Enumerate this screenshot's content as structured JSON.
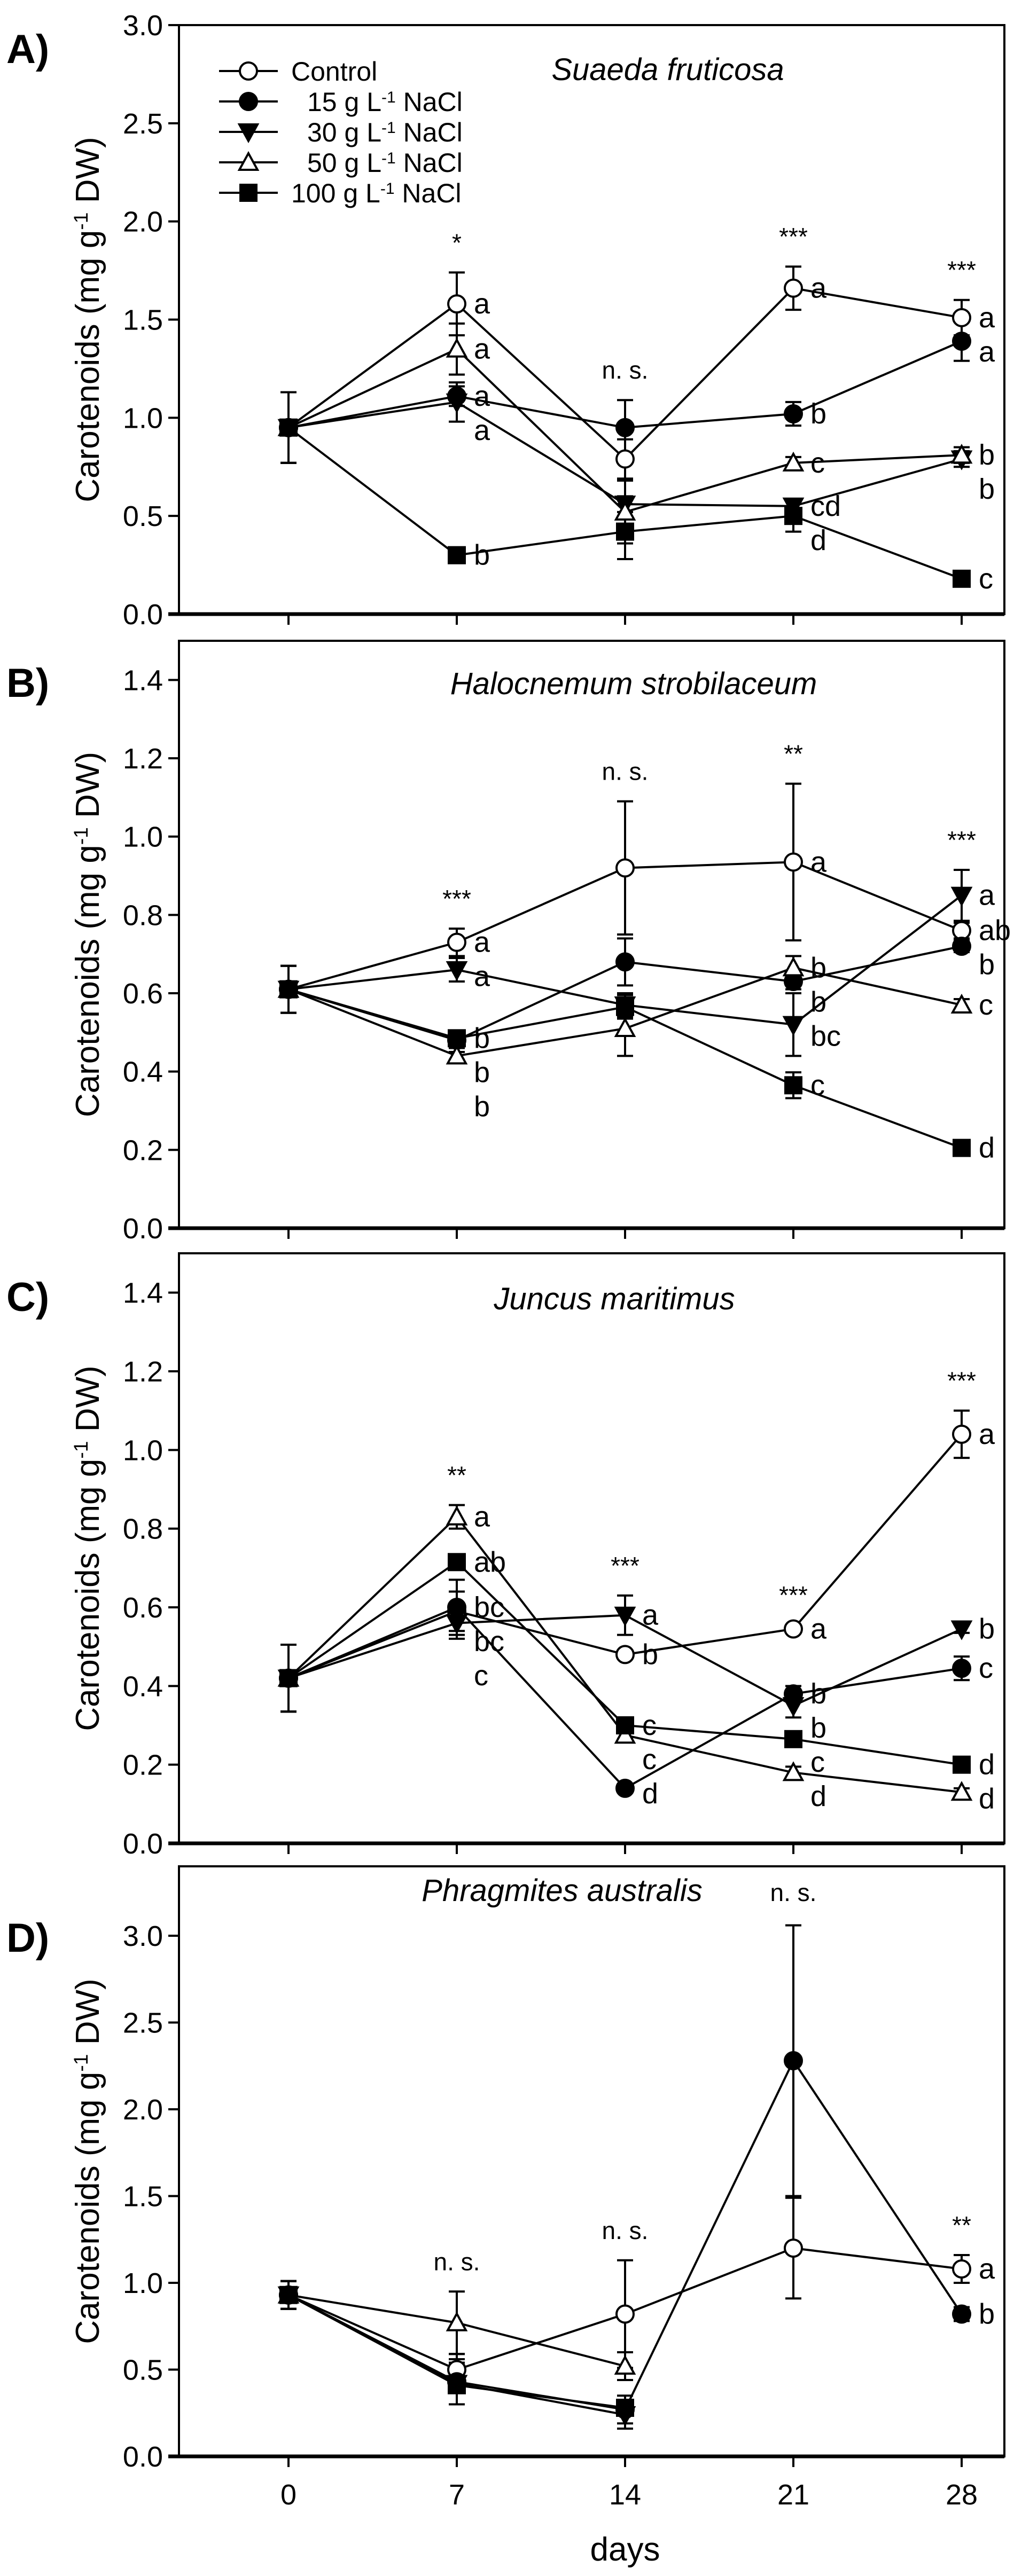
{
  "colors": {
    "ink": "#000000",
    "background": "#ffffff",
    "open_marker_fill": "#ffffff"
  },
  "x_categories": [
    0,
    7,
    14,
    21,
    28
  ],
  "x_tick_labels": [
    "0",
    "7",
    "14",
    "21",
    "28"
  ],
  "xlabel": "days",
  "ylabel": {
    "pre": "Carotenoids (mg g",
    "sup": "-1",
    "post": " DW)"
  },
  "legend": [
    {
      "pre": "Control",
      "sup": "",
      "post": "",
      "marker": "open-circle"
    },
    {
      "pre": "15 g L",
      "sup": "-1",
      "post": " NaCl",
      "marker": "filled-circle"
    },
    {
      "pre": "30 g L",
      "sup": "-1",
      "post": " NaCl",
      "marker": "filled-down-triangle"
    },
    {
      "pre": "50 g L",
      "sup": "-1",
      "post": " NaCl",
      "marker": "open-up-triangle"
    },
    {
      "pre": "100 g L",
      "sup": "-1",
      "post": " NaCl",
      "marker": "filled-square"
    }
  ],
  "chart_data": [
    {
      "type": "line",
      "panel": "A)",
      "title": "Suaeda fruticosa",
      "xlabel": "days",
      "ylabel": "Carotenoids (mg g-1 DW)",
      "ylim": [
        0,
        3.0
      ],
      "yticks": [
        0,
        0.5,
        1.0,
        1.5,
        2.0,
        2.5,
        3.0
      ],
      "ytick_labels": [
        "0.0",
        "0.5",
        "1.0",
        "1.5",
        "2.0",
        "2.5",
        "3.0"
      ],
      "significance": [
        "",
        "*",
        "n. s.",
        "***",
        "***"
      ],
      "series": [
        {
          "name": "Control",
          "values": [
            0.95,
            1.58,
            0.79,
            1.66,
            1.51
          ],
          "errors": [
            0.18,
            0.16,
            0.1,
            0.11,
            0.09
          ],
          "letters": [
            "",
            "a",
            "",
            "a",
            "a"
          ]
        },
        {
          "name": "15 g L-1 NaCl",
          "values": [
            0.95,
            1.11,
            0.95,
            1.02,
            1.39
          ],
          "errors": [
            0.18,
            0.05,
            0.14,
            0.06,
            0.1
          ],
          "letters": [
            "",
            "a",
            "",
            "b",
            "a"
          ]
        },
        {
          "name": "30 g L-1 NaCl",
          "values": [
            0.95,
            1.08,
            0.56,
            0.55,
            0.79
          ],
          "errors": [
            0.18,
            0.1,
            0.04,
            0.03,
            0.04
          ],
          "letters": [
            "",
            "a",
            "",
            "cd",
            "b"
          ]
        },
        {
          "name": "50 g L-1 NaCl",
          "values": [
            0.95,
            1.35,
            0.52,
            0.77,
            0.81
          ],
          "errors": [
            0.18,
            0.13,
            0.16,
            0.03,
            0.04
          ],
          "letters": [
            "",
            "a",
            "",
            "c",
            "b"
          ]
        },
        {
          "name": "100 g L-1 NaCl",
          "values": [
            0.95,
            0.3,
            0.42,
            0.5,
            0.18
          ],
          "errors": [
            0.18,
            0.03,
            0.14,
            0.08,
            0.02
          ],
          "letters": [
            "",
            "b",
            "",
            "d",
            "c"
          ]
        }
      ]
    },
    {
      "type": "line",
      "panel": "B)",
      "title": "Halocnemum strobilaceum",
      "xlabel": "days",
      "ylabel": "Carotenoids (mg g-1 DW)",
      "ylim": [
        0,
        1.5
      ],
      "yticks": [
        0,
        0.2,
        0.4,
        0.6,
        0.8,
        1.0,
        1.2,
        1.4
      ],
      "ytick_labels": [
        "0.0",
        "0.2",
        "0.4",
        "0.6",
        "0.8",
        "1.0",
        "1.2",
        "1.4"
      ],
      "significance": [
        "",
        "***",
        "n. s.",
        "**",
        "***"
      ],
      "series": [
        {
          "name": "Control",
          "values": [
            0.61,
            0.73,
            0.92,
            0.935,
            0.76
          ],
          "errors": [
            0.06,
            0.035,
            0.17,
            0.2,
            0.02
          ],
          "letters": [
            "",
            "a",
            "",
            "a",
            "ab"
          ]
        },
        {
          "name": "15 g L-1 NaCl",
          "values": [
            0.61,
            0.48,
            0.68,
            0.63,
            0.72
          ],
          "errors": [
            0.06,
            0.02,
            0.06,
            0.02,
            0.015
          ],
          "letters": [
            "",
            "b",
            "",
            "b",
            "b"
          ]
        },
        {
          "name": "30 g L-1 NaCl",
          "values": [
            0.61,
            0.66,
            0.57,
            0.52,
            0.85
          ],
          "errors": [
            0.06,
            0.03,
            0.03,
            0.08,
            0.065
          ],
          "letters": [
            "",
            "a",
            "",
            "bc",
            "a"
          ]
        },
        {
          "name": "50 g L-1 NaCl",
          "values": [
            0.61,
            0.44,
            0.51,
            0.665,
            0.57
          ],
          "errors": [
            0.06,
            0.01,
            0.07,
            0.03,
            0.015
          ],
          "letters": [
            "",
            "b",
            "",
            "b",
            "c"
          ]
        },
        {
          "name": "100 g L-1 NaCl",
          "values": [
            0.61,
            0.485,
            0.565,
            0.365,
            0.205
          ],
          "errors": [
            0.06,
            0.02,
            0.03,
            0.033,
            0.01
          ],
          "letters": [
            "",
            "b",
            "",
            "c",
            "d"
          ]
        }
      ]
    },
    {
      "type": "line",
      "panel": "C)",
      "title": "Juncus maritimus",
      "xlabel": "days",
      "ylabel": "Carotenoids (mg g-1 DW)",
      "ylim": [
        0,
        1.5
      ],
      "yticks": [
        0,
        0.2,
        0.4,
        0.6,
        0.8,
        1.0,
        1.2,
        1.4
      ],
      "ytick_labels": [
        "0.0",
        "0.2",
        "0.4",
        "0.6",
        "0.8",
        "1.0",
        "1.2",
        "1.4"
      ],
      "significance": [
        "",
        "**",
        "***",
        "***",
        "***"
      ],
      "series": [
        {
          "name": "Control",
          "values": [
            0.42,
            0.59,
            0.48,
            0.545,
            1.04
          ],
          "errors": [
            0.085,
            0.05,
            0.01,
            0.01,
            0.06
          ],
          "letters": [
            "",
            "bc",
            "b",
            "a",
            "a"
          ]
        },
        {
          "name": "15 g L-1 NaCl",
          "values": [
            0.42,
            0.6,
            0.14,
            0.38,
            0.445
          ],
          "errors": [
            0.085,
            0.07,
            0.01,
            0.02,
            0.03
          ],
          "letters": [
            "",
            "bc",
            "d",
            "b",
            "c"
          ]
        },
        {
          "name": "30 g L-1 NaCl",
          "values": [
            0.42,
            0.56,
            0.58,
            0.35,
            0.545
          ],
          "errors": [
            0.085,
            0.04,
            0.05,
            0.03,
            0.01
          ],
          "letters": [
            "",
            "c",
            "a",
            "b",
            "b"
          ]
        },
        {
          "name": "50 g L-1 NaCl",
          "values": [
            0.42,
            0.83,
            0.275,
            0.18,
            0.13
          ],
          "errors": [
            0.085,
            0.03,
            0.01,
            0.015,
            0.01
          ],
          "letters": [
            "",
            "a",
            "c",
            "d",
            "d"
          ]
        },
        {
          "name": "100 g L-1 NaCl",
          "values": [
            0.42,
            0.715,
            0.3,
            0.265,
            0.2
          ],
          "errors": [
            0.085,
            0.02,
            0.015,
            0.02,
            0.01
          ],
          "letters": [
            "",
            "ab",
            "c",
            "c",
            "d"
          ]
        }
      ]
    },
    {
      "type": "line",
      "panel": "D)",
      "title": "Phragmites australis",
      "xlabel": "days",
      "ylabel": "Carotenoids (mg g-1 DW)",
      "ylim": [
        0,
        3.4
      ],
      "yticks": [
        0,
        0.5,
        1.0,
        1.5,
        2.0,
        2.5,
        3.0
      ],
      "ytick_labels": [
        "0.0",
        "0.5",
        "1.0",
        "1.5",
        "2.0",
        "2.5",
        "3.0"
      ],
      "significance": [
        "",
        "n. s.",
        "n. s.",
        "n. s.",
        "**"
      ],
      "series": [
        {
          "name": "Control",
          "values": [
            0.93,
            0.5,
            0.82,
            1.2,
            1.08
          ],
          "errors": [
            0.08,
            0.09,
            0.31,
            0.29,
            0.08
          ],
          "letters": [
            "",
            "",
            "",
            "",
            "a"
          ]
        },
        {
          "name": "15 g L-1 NaCl",
          "values": [
            0.93,
            0.43,
            0.27,
            2.28,
            0.82
          ],
          "errors": [
            0.08,
            0.13,
            0.08,
            0.78,
            0.04
          ],
          "letters": [
            "",
            "",
            "",
            "",
            "b"
          ]
        },
        {
          "name": "30 g L-1 NaCl",
          "values": [
            0.93,
            0.42,
            0.24,
            null,
            null
          ],
          "errors": [
            0.08,
            0.12,
            0.08,
            null,
            null
          ],
          "letters": [
            "",
            "",
            "",
            "",
            ""
          ]
        },
        {
          "name": "50 g L-1 NaCl",
          "values": [
            0.93,
            0.77,
            0.52,
            null,
            null
          ],
          "errors": [
            0.08,
            0.18,
            0.08,
            null,
            null
          ],
          "letters": [
            "",
            "",
            "",
            "",
            ""
          ]
        },
        {
          "name": "100 g L-1 NaCl",
          "values": [
            0.93,
            0.41,
            0.28,
            null,
            null
          ],
          "errors": [
            0.08,
            0.11,
            0.03,
            null,
            null
          ],
          "letters": [
            "",
            "",
            "",
            "",
            ""
          ]
        }
      ]
    }
  ]
}
